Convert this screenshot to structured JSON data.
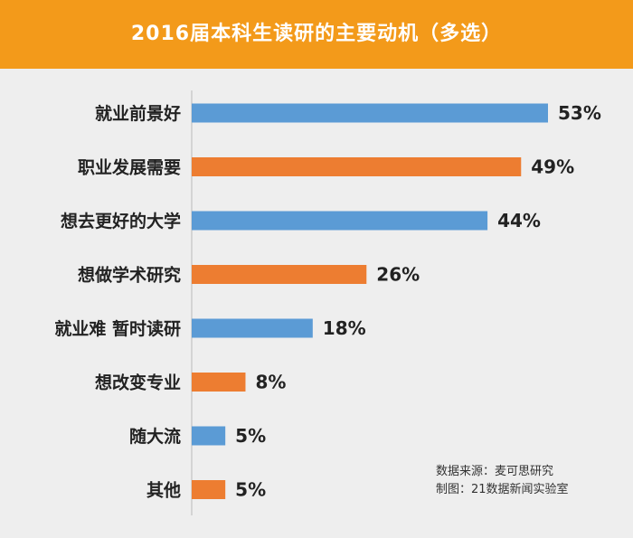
{
  "header": {
    "title": "2016届本科生读研的主要动机（多选）"
  },
  "source": {
    "data_source": "数据来源：麦可思研究",
    "made_by": "制图：21数据新闻实验室"
  },
  "colors": {
    "header_bg": "#f39a1a",
    "bar_blue": "#5b9bd5",
    "bar_orange": "#ed7d31",
    "background": "#eeeeee"
  },
  "chart_data": {
    "type": "bar",
    "orientation": "horizontal",
    "title": "2016届本科生读研的主要动机（多选）",
    "categories": [
      "就业前景好",
      "职业发展需要",
      "想去更好的大学",
      "想做学术研究",
      "就业难 暂时读研",
      "想改变专业",
      "随大流",
      "其他"
    ],
    "values": [
      53,
      49,
      44,
      26,
      18,
      8,
      5,
      5
    ],
    "value_labels": [
      "53%",
      "49%",
      "44%",
      "26%",
      "18%",
      "8%",
      "5%",
      "5%"
    ],
    "bar_colors": [
      "#5b9bd5",
      "#ed7d31",
      "#5b9bd5",
      "#ed7d31",
      "#5b9bd5",
      "#ed7d31",
      "#5b9bd5",
      "#ed7d31"
    ],
    "unit": "%",
    "xlim": [
      0,
      53
    ],
    "grid": false,
    "legend": "none"
  }
}
